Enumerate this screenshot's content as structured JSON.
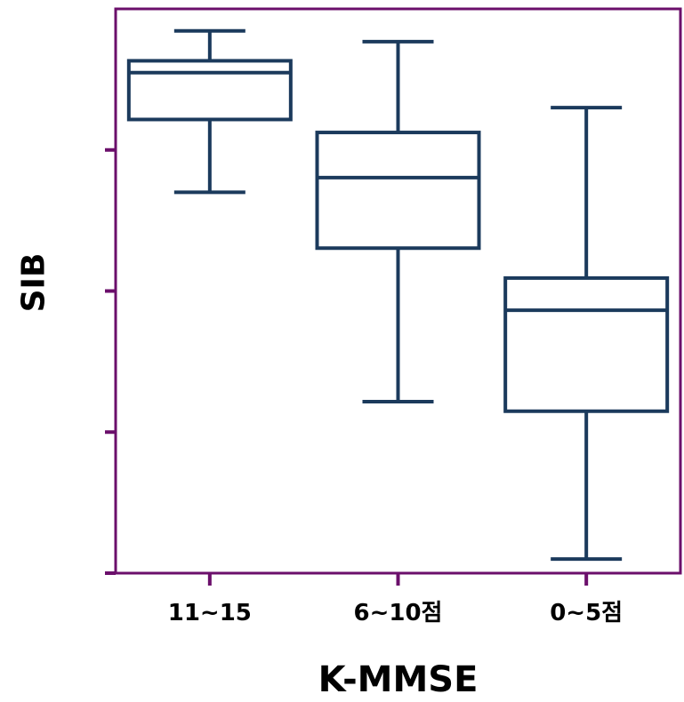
{
  "chart_data": {
    "type": "box",
    "title": "",
    "xlabel": "K-MMSE",
    "ylabel": "SIB",
    "categories": [
      "11~15",
      "6~10점",
      "0~5점"
    ],
    "ylim": [
      0,
      100
    ],
    "grid": false,
    "boxes": [
      {
        "category": "11~15",
        "whisker_low": 67.5,
        "q1": 80.4,
        "median": 88.7,
        "q3": 90.8,
        "whisker_high": 96.1
      },
      {
        "category": "6~10점",
        "whisker_low": 30.4,
        "q1": 57.6,
        "median": 70.1,
        "q3": 78.1,
        "whisker_high": 94.2
      },
      {
        "category": "0~5점",
        "whisker_low": 2.5,
        "q1": 28.7,
        "median": 46.6,
        "q3": 52.3,
        "whisker_high": 82.5
      }
    ],
    "colors": {
      "box": "#1b3a5c",
      "axis": "#6b0f6b"
    }
  }
}
